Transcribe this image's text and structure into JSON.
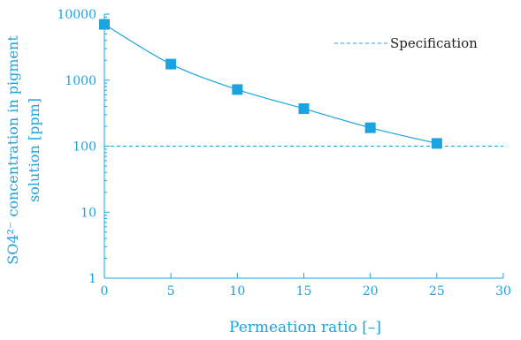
{
  "chart_data": {
    "type": "line",
    "title": "",
    "xlabel": "Permeation ratio [–]",
    "ylabel_line1": "SO4²⁻ concentration in pigment",
    "ylabel_line2": "solution [ppm]",
    "xlim": [
      0,
      30
    ],
    "ylim": [
      1,
      10000
    ],
    "yscale": "log",
    "x_ticks": [
      0,
      5,
      10,
      15,
      20,
      25,
      30
    ],
    "y_ticks": [
      1,
      10,
      100,
      1000,
      10000
    ],
    "grid": false,
    "legend_position": "top-right",
    "series": [
      {
        "name": "",
        "x": [
          0,
          5,
          10,
          15,
          20,
          25
        ],
        "values": [
          7000,
          1750,
          720,
          370,
          190,
          110
        ],
        "marker": "square",
        "color": "#1aa3e0"
      }
    ],
    "reference_lines": [
      {
        "name": "Specification",
        "y": 100,
        "style": "dashed",
        "color": "#1aa3e0"
      }
    ]
  }
}
